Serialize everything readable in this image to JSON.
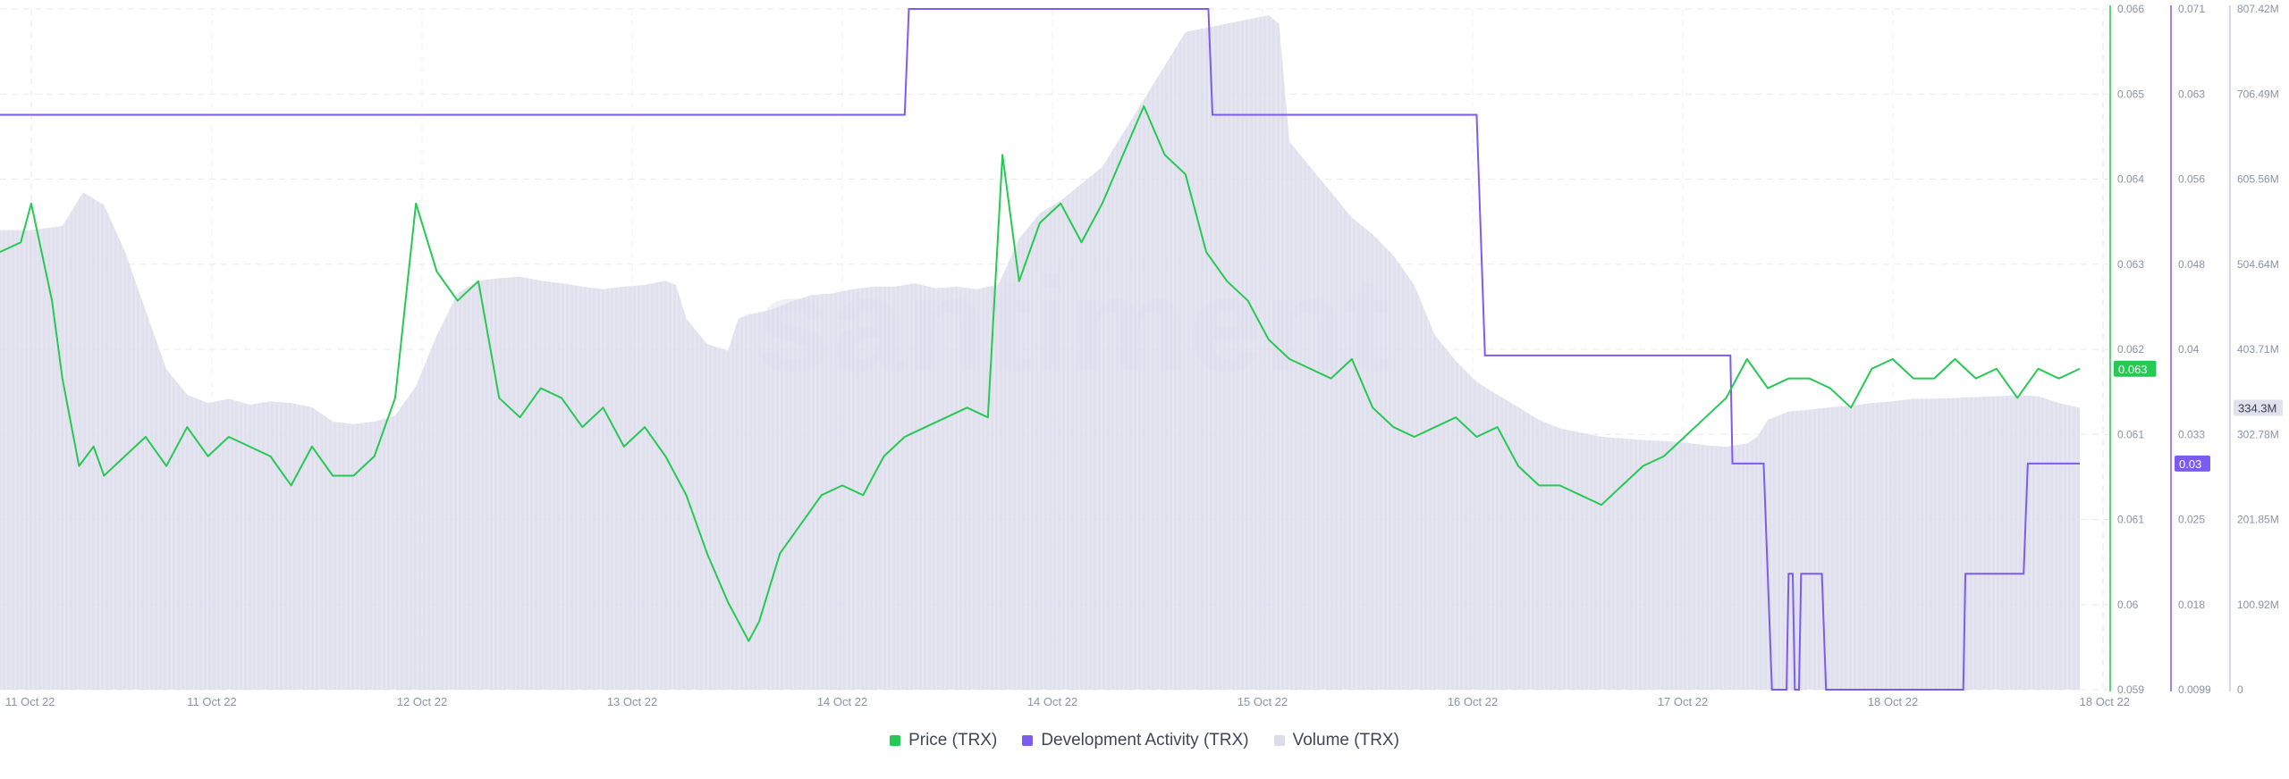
{
  "watermark": "santiment",
  "colors": {
    "price": "#26c953",
    "dev": "#7b5cf0",
    "volume": "#dadbeb",
    "grid": "#e6e8ee"
  },
  "chart_data": {
    "type": "line",
    "x_tick_labels": [
      "11 Oct 22",
      "11 Oct 22",
      "12 Oct 22",
      "13 Oct 22",
      "14 Oct 22",
      "14 Oct 22",
      "15 Oct 22",
      "16 Oct 22",
      "17 Oct 22",
      "18 Oct 22",
      "18 Oct 22"
    ],
    "axes": {
      "price": {
        "ticks": [
          "0.066",
          "0.065",
          "0.064",
          "0.063",
          "0.062",
          "0.061",
          "0.061",
          "0.06",
          "0.059"
        ],
        "ylim": [
          0.059,
          0.066
        ],
        "current_label": "0.063"
      },
      "dev": {
        "ticks": [
          "0.071",
          "0.063",
          "0.056",
          "0.048",
          "0.04",
          "0.033",
          "0.025",
          "0.018",
          "0.0099"
        ],
        "ylim": [
          0.0099,
          0.071
        ],
        "current_label": "0.03"
      },
      "volume": {
        "ticks": [
          "807.42M",
          "706.49M",
          "605.56M",
          "504.64M",
          "403.71M",
          "302.78M",
          "201.85M",
          "100.92M",
          "0"
        ],
        "ylim": [
          0,
          807.42
        ],
        "current_label": "334.3M"
      }
    },
    "series": [
      {
        "name": "Price (TRX)",
        "axis": "price",
        "style": "line",
        "points": [
          [
            0,
            0.0635
          ],
          [
            0.01,
            0.0636
          ],
          [
            0.015,
            0.064
          ],
          [
            0.025,
            0.063
          ],
          [
            0.03,
            0.0622
          ],
          [
            0.038,
            0.0613
          ],
          [
            0.045,
            0.0615
          ],
          [
            0.05,
            0.0612
          ],
          [
            0.06,
            0.0614
          ],
          [
            0.07,
            0.0616
          ],
          [
            0.08,
            0.0613
          ],
          [
            0.09,
            0.0617
          ],
          [
            0.1,
            0.0614
          ],
          [
            0.11,
            0.0616
          ],
          [
            0.12,
            0.0615
          ],
          [
            0.13,
            0.0614
          ],
          [
            0.14,
            0.0611
          ],
          [
            0.15,
            0.0615
          ],
          [
            0.16,
            0.0612
          ],
          [
            0.17,
            0.0612
          ],
          [
            0.18,
            0.0614
          ],
          [
            0.19,
            0.062
          ],
          [
            0.2,
            0.064
          ],
          [
            0.21,
            0.0633
          ],
          [
            0.22,
            0.063
          ],
          [
            0.23,
            0.0632
          ],
          [
            0.24,
            0.062
          ],
          [
            0.25,
            0.0618
          ],
          [
            0.26,
            0.0621
          ],
          [
            0.27,
            0.062
          ],
          [
            0.28,
            0.0617
          ],
          [
            0.29,
            0.0619
          ],
          [
            0.3,
            0.0615
          ],
          [
            0.31,
            0.0617
          ],
          [
            0.32,
            0.0614
          ],
          [
            0.33,
            0.061
          ],
          [
            0.34,
            0.0604
          ],
          [
            0.35,
            0.0599
          ],
          [
            0.36,
            0.0595
          ],
          [
            0.365,
            0.0597
          ],
          [
            0.375,
            0.0604
          ],
          [
            0.385,
            0.0607
          ],
          [
            0.395,
            0.061
          ],
          [
            0.405,
            0.0611
          ],
          [
            0.415,
            0.061
          ],
          [
            0.425,
            0.0614
          ],
          [
            0.435,
            0.0616
          ],
          [
            0.445,
            0.0617
          ],
          [
            0.455,
            0.0618
          ],
          [
            0.465,
            0.0619
          ],
          [
            0.475,
            0.0618
          ],
          [
            0.482,
            0.0645
          ],
          [
            0.49,
            0.0632
          ],
          [
            0.5,
            0.0638
          ],
          [
            0.51,
            0.064
          ],
          [
            0.52,
            0.0636
          ],
          [
            0.53,
            0.064
          ],
          [
            0.54,
            0.0645
          ],
          [
            0.55,
            0.065
          ],
          [
            0.56,
            0.0645
          ],
          [
            0.57,
            0.0643
          ],
          [
            0.58,
            0.0635
          ],
          [
            0.59,
            0.0632
          ],
          [
            0.6,
            0.063
          ],
          [
            0.61,
            0.0626
          ],
          [
            0.62,
            0.0624
          ],
          [
            0.63,
            0.0623
          ],
          [
            0.64,
            0.0622
          ],
          [
            0.65,
            0.0624
          ],
          [
            0.66,
            0.0619
          ],
          [
            0.67,
            0.0617
          ],
          [
            0.68,
            0.0616
          ],
          [
            0.69,
            0.0617
          ],
          [
            0.7,
            0.0618
          ],
          [
            0.71,
            0.0616
          ],
          [
            0.72,
            0.0617
          ],
          [
            0.73,
            0.0613
          ],
          [
            0.74,
            0.0611
          ],
          [
            0.75,
            0.0611
          ],
          [
            0.76,
            0.061
          ],
          [
            0.77,
            0.0609
          ],
          [
            0.78,
            0.0611
          ],
          [
            0.79,
            0.0613
          ],
          [
            0.8,
            0.0614
          ],
          [
            0.81,
            0.0616
          ],
          [
            0.82,
            0.0618
          ],
          [
            0.83,
            0.062
          ],
          [
            0.84,
            0.0624
          ],
          [
            0.85,
            0.0621
          ],
          [
            0.86,
            0.0622
          ],
          [
            0.87,
            0.0622
          ],
          [
            0.88,
            0.0621
          ],
          [
            0.89,
            0.0619
          ],
          [
            0.9,
            0.0623
          ],
          [
            0.91,
            0.0624
          ],
          [
            0.92,
            0.0622
          ],
          [
            0.93,
            0.0622
          ],
          [
            0.94,
            0.0624
          ],
          [
            0.95,
            0.0622
          ],
          [
            0.96,
            0.0623
          ],
          [
            0.97,
            0.062
          ],
          [
            0.98,
            0.0623
          ],
          [
            0.99,
            0.0622
          ],
          [
            1.0,
            0.0623
          ]
        ]
      },
      {
        "name": "Development Activity (TRX)",
        "axis": "dev",
        "style": "step",
        "points": [
          [
            0,
            0.0615
          ],
          [
            0.435,
            0.0615
          ],
          [
            0.437,
            0.071
          ],
          [
            0.581,
            0.071
          ],
          [
            0.583,
            0.0615
          ],
          [
            0.71,
            0.0615
          ],
          [
            0.714,
            0.0399
          ],
          [
            0.832,
            0.0399
          ],
          [
            0.833,
            0.0302
          ],
          [
            0.848,
            0.0302
          ],
          [
            0.852,
            0.0099
          ],
          [
            0.859,
            0.0099
          ],
          [
            0.86,
            0.0203
          ],
          [
            0.862,
            0.0203
          ],
          [
            0.863,
            0.0099
          ],
          [
            0.865,
            0.0099
          ],
          [
            0.866,
            0.0203
          ],
          [
            0.876,
            0.0203
          ],
          [
            0.878,
            0.0099
          ],
          [
            0.944,
            0.0099
          ],
          [
            0.945,
            0.0203
          ],
          [
            0.973,
            0.0203
          ],
          [
            0.975,
            0.0302
          ],
          [
            1.0,
            0.0302
          ]
        ]
      },
      {
        "name": "Volume (TRX)",
        "axis": "volume",
        "style": "area",
        "points": [
          [
            0,
            545
          ],
          [
            0.015,
            545
          ],
          [
            0.03,
            550
          ],
          [
            0.04,
            590
          ],
          [
            0.05,
            575
          ],
          [
            0.06,
            520
          ],
          [
            0.07,
            450
          ],
          [
            0.08,
            380
          ],
          [
            0.09,
            350
          ],
          [
            0.1,
            340
          ],
          [
            0.11,
            345
          ],
          [
            0.12,
            338
          ],
          [
            0.13,
            342
          ],
          [
            0.14,
            340
          ],
          [
            0.15,
            335
          ],
          [
            0.16,
            318
          ],
          [
            0.17,
            315
          ],
          [
            0.18,
            318
          ],
          [
            0.19,
            325
          ],
          [
            0.2,
            360
          ],
          [
            0.21,
            420
          ],
          [
            0.22,
            470
          ],
          [
            0.23,
            485
          ],
          [
            0.24,
            488
          ],
          [
            0.25,
            490
          ],
          [
            0.26,
            485
          ],
          [
            0.27,
            482
          ],
          [
            0.28,
            478
          ],
          [
            0.29,
            475
          ],
          [
            0.3,
            478
          ],
          [
            0.31,
            480
          ],
          [
            0.32,
            485
          ],
          [
            0.325,
            480
          ],
          [
            0.33,
            440
          ],
          [
            0.34,
            410
          ],
          [
            0.35,
            402
          ],
          [
            0.355,
            440
          ],
          [
            0.36,
            445
          ],
          [
            0.37,
            450
          ],
          [
            0.38,
            460
          ],
          [
            0.39,
            468
          ],
          [
            0.4,
            470
          ],
          [
            0.41,
            475
          ],
          [
            0.42,
            478
          ],
          [
            0.43,
            478
          ],
          [
            0.44,
            482
          ],
          [
            0.45,
            476
          ],
          [
            0.46,
            478
          ],
          [
            0.47,
            475
          ],
          [
            0.475,
            478
          ],
          [
            0.48,
            480
          ],
          [
            0.49,
            535
          ],
          [
            0.5,
            565
          ],
          [
            0.51,
            580
          ],
          [
            0.52,
            600
          ],
          [
            0.53,
            620
          ],
          [
            0.54,
            660
          ],
          [
            0.55,
            700
          ],
          [
            0.56,
            740
          ],
          [
            0.57,
            780
          ],
          [
            0.58,
            785
          ],
          [
            0.59,
            790
          ],
          [
            0.6,
            795
          ],
          [
            0.61,
            800
          ],
          [
            0.615,
            790
          ],
          [
            0.62,
            650
          ],
          [
            0.63,
            620
          ],
          [
            0.64,
            590
          ],
          [
            0.65,
            560
          ],
          [
            0.66,
            540
          ],
          [
            0.67,
            515
          ],
          [
            0.68,
            480
          ],
          [
            0.69,
            420
          ],
          [
            0.7,
            390
          ],
          [
            0.71,
            365
          ],
          [
            0.72,
            350
          ],
          [
            0.73,
            335
          ],
          [
            0.74,
            320
          ],
          [
            0.75,
            310
          ],
          [
            0.76,
            305
          ],
          [
            0.77,
            300
          ],
          [
            0.78,
            298
          ],
          [
            0.79,
            296
          ],
          [
            0.8,
            295
          ],
          [
            0.81,
            293
          ],
          [
            0.82,
            290
          ],
          [
            0.83,
            288
          ],
          [
            0.84,
            292
          ],
          [
            0.845,
            300
          ],
          [
            0.85,
            320
          ],
          [
            0.86,
            330
          ],
          [
            0.87,
            332
          ],
          [
            0.88,
            335
          ],
          [
            0.89,
            337
          ],
          [
            0.9,
            340
          ],
          [
            0.91,
            342
          ],
          [
            0.92,
            345
          ],
          [
            0.93,
            345
          ],
          [
            0.94,
            346
          ],
          [
            0.95,
            347
          ],
          [
            0.96,
            348
          ],
          [
            0.97,
            349
          ],
          [
            0.98,
            348
          ],
          [
            0.99,
            340
          ],
          [
            1.0,
            334.3
          ]
        ]
      }
    ],
    "legend": [
      {
        "label": "Price (TRX)",
        "color": "#26c953"
      },
      {
        "label": "Development Activity (TRX)",
        "color": "#7b5cf0"
      },
      {
        "label": "Volume (TRX)",
        "color": "#dadbeb"
      }
    ],
    "grid": true,
    "legend_position": "bottom-center"
  }
}
